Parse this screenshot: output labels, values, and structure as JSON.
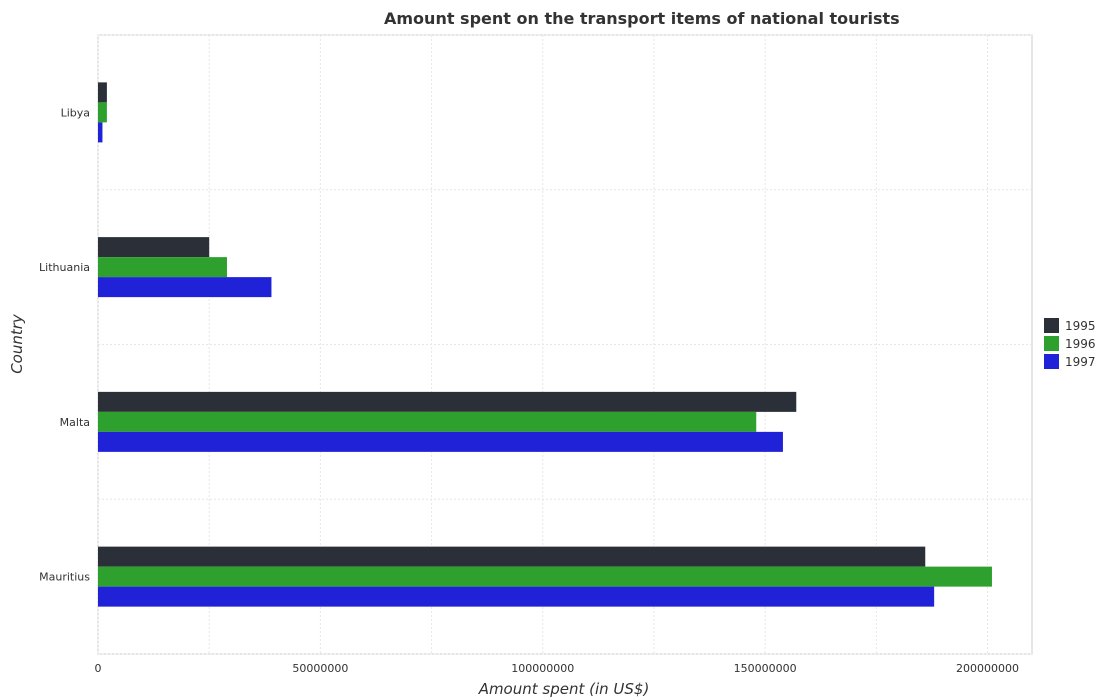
{
  "chart_data": {
    "type": "bar",
    "orientation": "horizontal",
    "title": "Amount spent on the transport items of national tourists",
    "xlabel": "Amount spent (in US$)",
    "ylabel": "Country",
    "categories": [
      "Libya",
      "Lithuania",
      "Malta",
      "Mauritius"
    ],
    "series": [
      {
        "name": "1995",
        "color": "#2b2f38",
        "values": [
          2000000,
          25000000,
          157000000,
          186000000
        ]
      },
      {
        "name": "1996",
        "color": "#2ea02e",
        "values": [
          2000000,
          29000000,
          148000000,
          201000000
        ]
      },
      {
        "name": "1997",
        "color": "#1f22d6",
        "values": [
          1000000,
          39000000,
          154000000,
          188000000
        ]
      }
    ],
    "xlim": [
      0,
      210000000
    ],
    "xticks": [
      0,
      50000000,
      100000000,
      150000000,
      200000000
    ],
    "xtick_labels": [
      "0",
      "50000000",
      "100000000",
      "150000000",
      "200000000"
    ],
    "grid": true,
    "legend_position": "right"
  }
}
